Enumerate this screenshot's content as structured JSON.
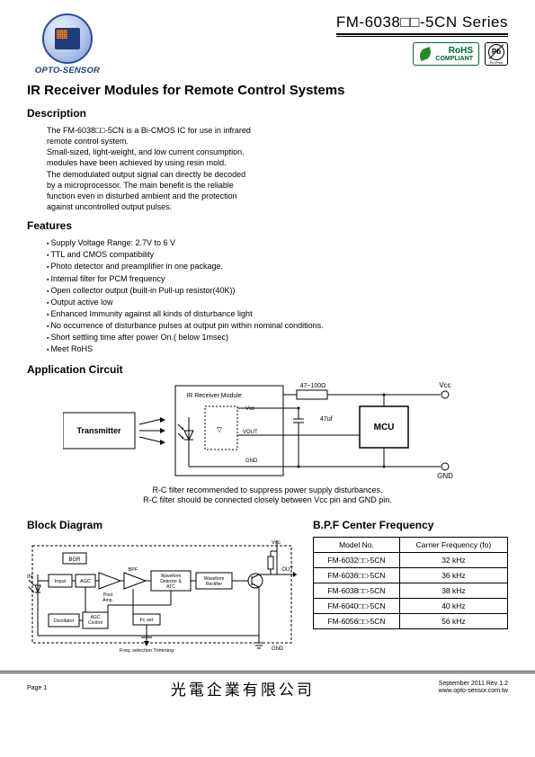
{
  "header": {
    "logo_text": "OPTO-SENSOR",
    "series_title": "FM-6038□□-5CN Series"
  },
  "badges": {
    "rohs_main": "RoHS",
    "rohs_sub": "COMPLIANT",
    "pb_text": "Pb",
    "pb_sub": "Pb-Free"
  },
  "main_title": "IR Receiver Modules for Remote Control Systems",
  "sections": {
    "description_h": "Description",
    "description_body": "The FM-6038□□-5CN is a Bi-CMOS IC for use in infrared\nremote control system.\nSmall-sized, light-weight, and low current consumption.\nmodules have been achieved by using resin mold.\nThe demodulated output signal can directly be decoded\nby a microprocessor. The main benefit is the reliable\nfunction even in disturbed ambient and the protection\nagainst uncontrolled output pulses.",
    "features_h": "Features",
    "features": [
      "Supply Voltage Range: 2.7V to 6 V",
      "TTL and CMOS compatibility",
      "Photo detector and preamplifier in one package.",
      "Internal filter for PCM  frequency",
      "Open collector output (built-in Pull-up resistor(40K))",
      "Output active low",
      "Enhanced Immunity against all kinds of disturbance light",
      "No occurrence of disturbance pulses at output pin within nominal conditions.",
      "Short settling time after power On.( below 1msec)",
      "Meet RoHS"
    ],
    "app_h": "Application  Circuit",
    "app_labels": {
      "transmitter": "Transmitter",
      "ir_module": "IR Receiver Module",
      "vcc": "Vcc",
      "vout": "VOUT",
      "gnd": "GND",
      "r_val": "47~100Ω",
      "c_val": "47uf",
      "mcu": "MCU"
    },
    "app_note1": "R-C filter recommended to suppress power supply disturbances.",
    "app_note2": "R-C filter should be connected closely between Vcc pin and GND pin.",
    "block_h": "Block Diagram",
    "block_labels": {
      "bgr": "BGR",
      "in": "IN",
      "input": "Input",
      "agc": "AGC",
      "post_amp": "Post\nAmp.",
      "bpf": "BPF",
      "wave_det": "Waveform\nDetector &\nATC",
      "wave_rect": "Waveform\nRectifier",
      "out": "OUT",
      "vcc": "Vcc",
      "gnd": "GND",
      "oscillator": "Oscillator",
      "agc_ctrl": "AGC\nControl",
      "fc_set": "Fc set",
      "trim": "Freq. selection Trimming"
    },
    "bpf_h": "B.P.F Center Frequency",
    "bpf_table": {
      "col_model": "Model No.",
      "col_freq": "Carrier Frequency (fo)",
      "rows": [
        {
          "model": "FM-6032□□-5CN",
          "freq": "32 kHz"
        },
        {
          "model": "FM-6036□□-5CN",
          "freq": "36 kHz"
        },
        {
          "model": "FM-6038□□-5CN",
          "freq": "38 kHz"
        },
        {
          "model": "FM-6040□□-5CN",
          "freq": "40 kHz"
        },
        {
          "model": "FM-6056□□-5CN",
          "freq": "56 kHz"
        }
      ]
    }
  },
  "footer": {
    "page": "Page 1",
    "company_cn": "光電企業有限公司",
    "date_rev": "September  2011  Rev 1.2",
    "url": "www.opto-sensor.com.tw"
  },
  "style": {
    "text_color": "#000000",
    "accent_blue": "#1f3d7a",
    "rohs_green": "#006633",
    "page_bg": "#ffffff",
    "rule_color": "#000000"
  }
}
